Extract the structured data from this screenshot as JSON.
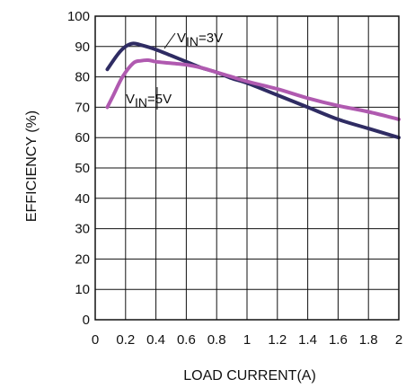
{
  "chart_data": {
    "type": "line",
    "xlabel": "LOAD CURRENT(A)",
    "ylabel": "EFFICIENCY (%)",
    "xlim": [
      0,
      2
    ],
    "ylim": [
      0,
      100
    ],
    "x_ticks": [
      "0",
      "0.2",
      "0.4",
      "0.6",
      "0.8",
      "1",
      "1.2",
      "1.4",
      "1.6",
      "1.8",
      "2"
    ],
    "y_ticks": [
      "0",
      "10",
      "20",
      "30",
      "40",
      "50",
      "60",
      "70",
      "80",
      "90",
      "100"
    ],
    "grid": true,
    "series": [
      {
        "color": "#2f2c63",
        "x": [
          0.08,
          0.15,
          0.2,
          0.25,
          0.3,
          0.4,
          0.5,
          0.6,
          0.7,
          0.8,
          0.9,
          1.0,
          1.2,
          1.4,
          1.6,
          1.8,
          2.0
        ],
        "y": [
          82.5,
          87.5,
          90,
          91,
          90.5,
          89,
          87,
          85,
          83,
          81.5,
          79.5,
          78,
          74,
          70,
          66,
          63,
          60
        ]
      },
      {
        "color": "#b05ab0",
        "x": [
          0.08,
          0.12,
          0.18,
          0.25,
          0.3,
          0.35,
          0.4,
          0.5,
          0.6,
          0.7,
          0.8,
          0.9,
          1.0,
          1.2,
          1.4,
          1.6,
          1.8,
          2.0
        ],
        "y": [
          70,
          74,
          80,
          84.5,
          85.3,
          85.5,
          85,
          84.5,
          84,
          83,
          81.5,
          80,
          78.5,
          76,
          73,
          70.5,
          68.5,
          66
        ]
      }
    ],
    "annotations": [
      {
        "main": "V",
        "sub": "IN",
        "rest": "=3V"
      },
      {
        "main": "V",
        "sub": "IN",
        "rest": "=5V"
      }
    ]
  }
}
